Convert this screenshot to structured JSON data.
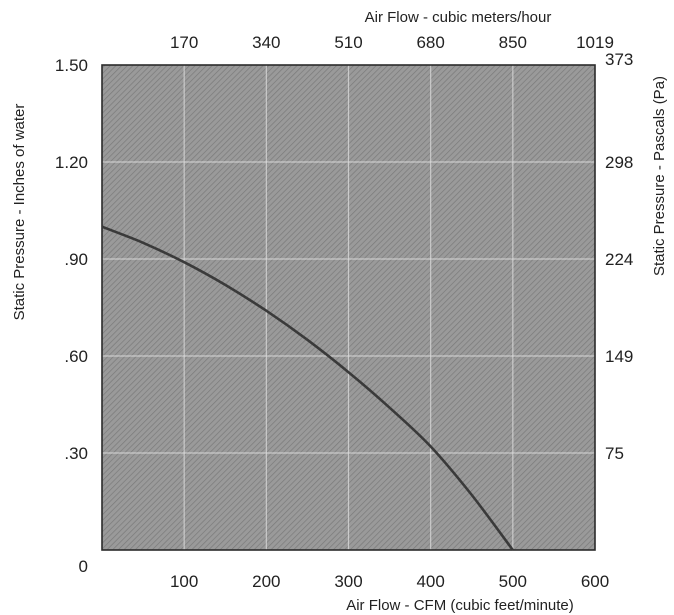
{
  "chart_data": {
    "type": "line",
    "title": "",
    "xlabel": "Air Flow - CFM (cubic feet/minute)",
    "ylabel": "Static Pressure - Inches of water",
    "x2label": "Air Flow - cubic meters/hour",
    "y2label": "Static Pressure - Pascals (Pa)",
    "xlim": [
      0,
      600
    ],
    "ylim": [
      0,
      1.5
    ],
    "x_ticks": [
      100,
      200,
      300,
      400,
      500,
      600
    ],
    "x_tick_labels": [
      "100",
      "200",
      "300",
      "400",
      "500",
      "600"
    ],
    "y_ticks": [
      0,
      0.3,
      0.6,
      0.9,
      1.2,
      1.5
    ],
    "y_tick_labels": [
      "0",
      ".30",
      ".60",
      ".90",
      "1.20",
      "1.50"
    ],
    "x2_ticks_at_cfm": [
      100,
      200,
      300,
      400,
      500,
      600
    ],
    "x2_tick_labels": [
      "170",
      "340",
      "510",
      "680",
      "850",
      "1019"
    ],
    "y2_ticks_at_inches": [
      0.3,
      0.6,
      0.9,
      1.2,
      1.5
    ],
    "y2_tick_labels": [
      "75",
      "149",
      "224",
      "298",
      "373"
    ],
    "grid": true,
    "plot_background": "#8f8f8f",
    "line_color": "#3a3a3a",
    "series": [
      {
        "x": [
          0,
          50,
          100,
          150,
          200,
          250,
          300,
          350,
          400,
          450,
          500
        ],
        "y": [
          1.0,
          0.95,
          0.89,
          0.82,
          0.74,
          0.65,
          0.55,
          0.44,
          0.32,
          0.17,
          0.0
        ]
      }
    ]
  }
}
